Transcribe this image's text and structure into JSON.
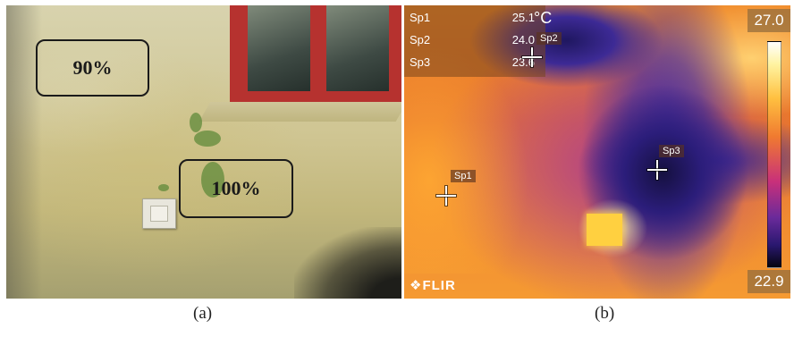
{
  "photo": {
    "labels": {
      "upper": "90%",
      "lower": "100%"
    },
    "caption": "(a)"
  },
  "thermal": {
    "unit": "°C",
    "spots": [
      {
        "name": "Sp1",
        "value": "25.1"
      },
      {
        "name": "Sp2",
        "value": "24.0"
      },
      {
        "name": "Sp3",
        "value": "23.6"
      }
    ],
    "scale": {
      "max": "27.0",
      "min": "22.9"
    },
    "logo": "FLIR",
    "caption": "(b)"
  },
  "colors": {
    "wall": "#cfc592",
    "window_frame": "#b6322f",
    "thermal_warm": "#f08a2a",
    "thermal_cold": "#2b1d7a",
    "label_border": "#1a1a1a"
  }
}
